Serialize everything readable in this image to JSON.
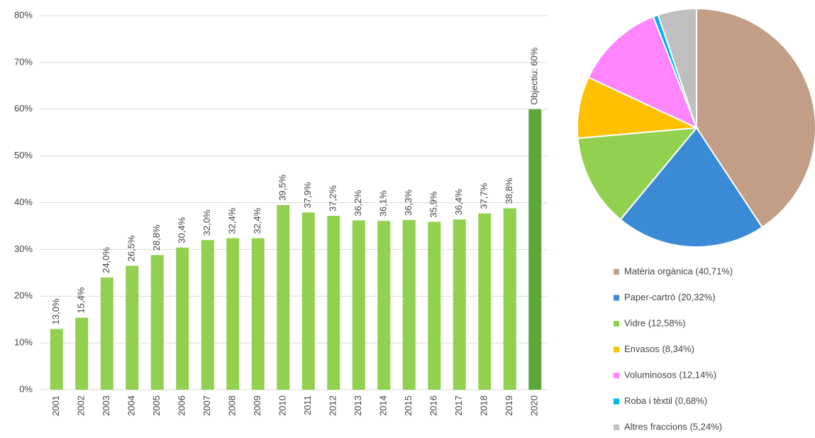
{
  "chart_data": [
    {
      "type": "bar",
      "categories": [
        "2001",
        "2002",
        "2003",
        "2004",
        "2005",
        "2006",
        "2007",
        "2008",
        "2009",
        "2010",
        "2011",
        "2012",
        "2013",
        "2014",
        "2015",
        "2016",
        "2017",
        "2018",
        "2019",
        "2020"
      ],
      "values": [
        13.0,
        15.4,
        24.0,
        26.5,
        28.8,
        30.4,
        32.0,
        32.4,
        32.4,
        39.5,
        37.9,
        37.2,
        36.2,
        36.1,
        36.3,
        35.9,
        36.4,
        37.7,
        38.8,
        60
      ],
      "value_labels": [
        "13,0%",
        "15,4%",
        "24,0%",
        "26,5%",
        "28,8%",
        "30,4%",
        "32,0%",
        "32,4%",
        "32,4%",
        "39,5%",
        "37,9%",
        "37,2%",
        "36,2%",
        "36,1%",
        "36,3%",
        "35,9%",
        "36,4%",
        "37,7%",
        "38,8%",
        "Objectiu: 60%"
      ],
      "colors": [
        "#92d050",
        "#92d050",
        "#92d050",
        "#92d050",
        "#92d050",
        "#92d050",
        "#92d050",
        "#92d050",
        "#92d050",
        "#92d050",
        "#92d050",
        "#92d050",
        "#92d050",
        "#92d050",
        "#92d050",
        "#92d050",
        "#92d050",
        "#92d050",
        "#92d050",
        "#5ea83a"
      ],
      "ylim": [
        0,
        80
      ],
      "yticks": [
        {
          "value": 0,
          "label": "0%"
        },
        {
          "value": 10,
          "label": "10%"
        },
        {
          "value": 20,
          "label": "20%"
        },
        {
          "value": 30,
          "label": "30%"
        },
        {
          "value": 40,
          "label": "40%"
        },
        {
          "value": 50,
          "label": "50%"
        },
        {
          "value": 60,
          "label": "60%"
        },
        {
          "value": 70,
          "label": "70%"
        },
        {
          "value": 80,
          "label": "80%"
        }
      ],
      "grid": true
    },
    {
      "type": "pie",
      "categories": [
        "Matèria orgànica (40,71%)",
        "Paper-cartró (20,32%)",
        "Vidre (12,58%)",
        "Envasos (8,34%)",
        "Voluminosos (12,14%)",
        "Roba i tèxtil (0,68%)",
        "Altres fraccions (5,24%)"
      ],
      "values": [
        40.71,
        20.32,
        12.58,
        8.34,
        12.14,
        0.68,
        5.24
      ],
      "colors": [
        "#c29e86",
        "#3a8ad6",
        "#92d050",
        "#ffc000",
        "#ff85ff",
        "#00b0f0",
        "#bfbfbf"
      ],
      "legend": "bottom"
    }
  ]
}
